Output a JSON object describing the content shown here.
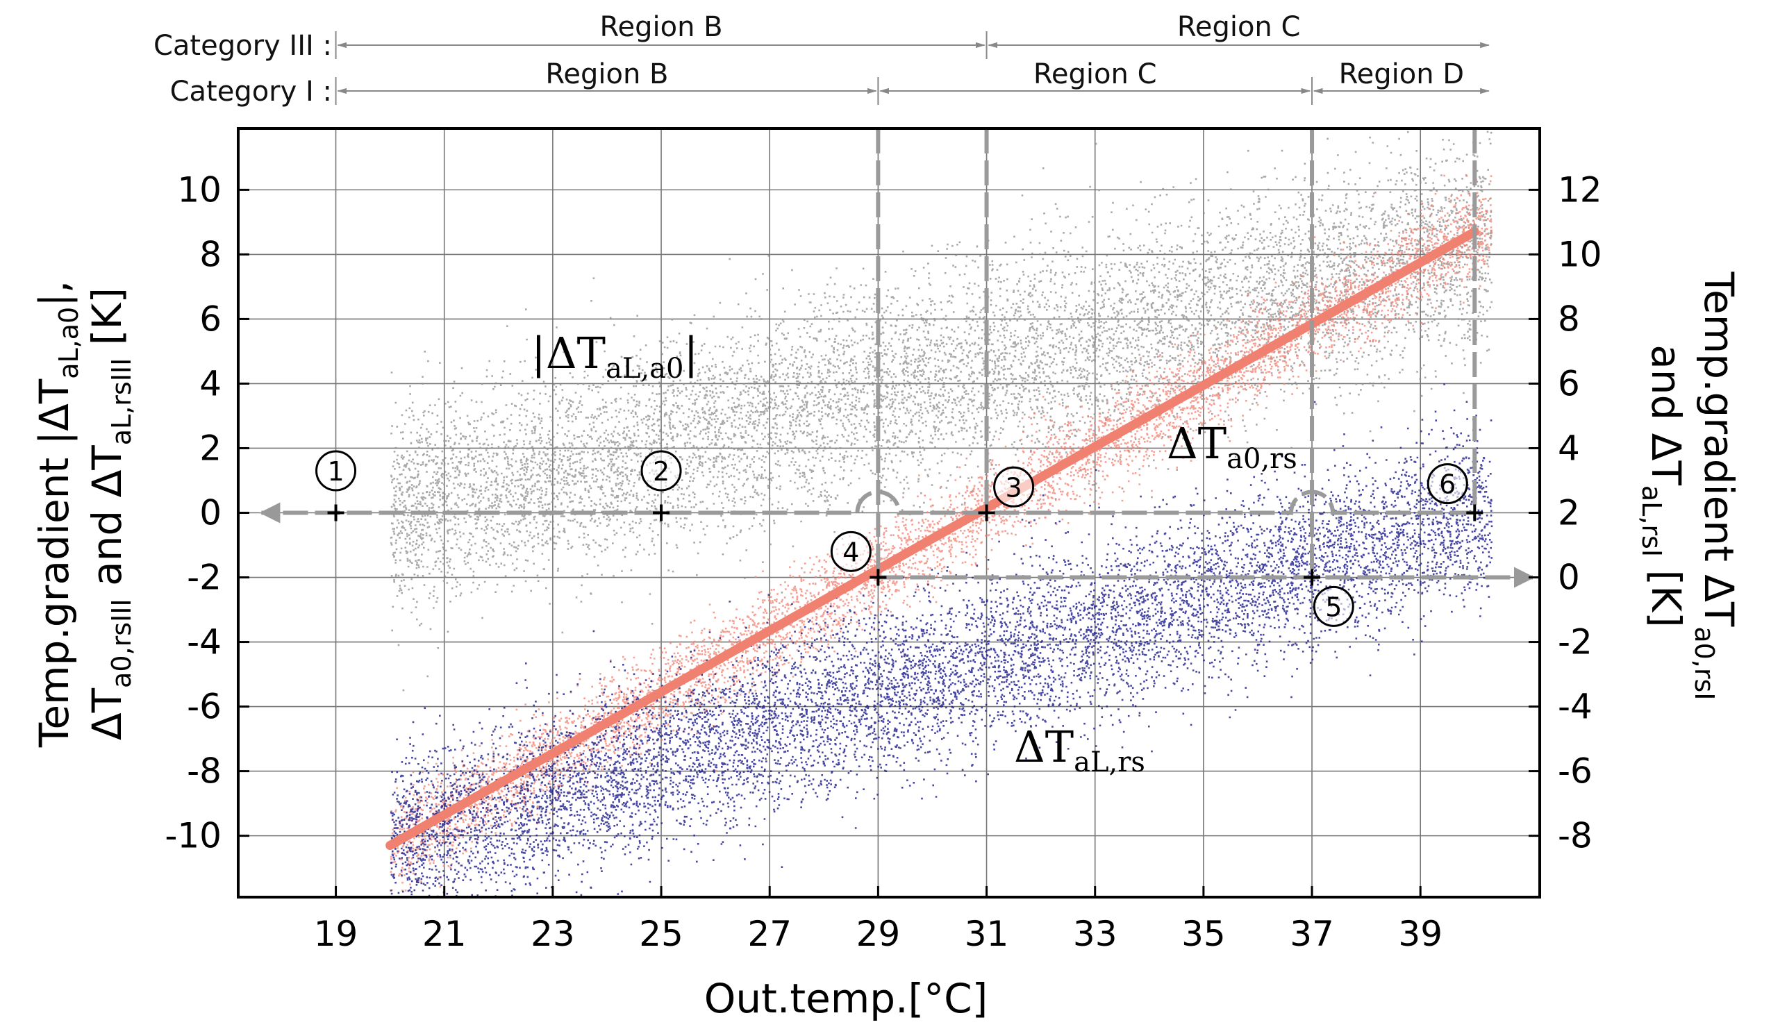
{
  "chart_data": {
    "type": "scatter",
    "title": "",
    "xlabel": "Out.temp.[°C]",
    "ylabel_left_line1": "Temp.gradient |ΔT",
    "ylabel_left_line1_sub": "aL,a0",
    "ylabel_left_line1_tail": "|,",
    "ylabel_left_line2": "ΔT",
    "ylabel_left_line2_sub": "a0,rsIII",
    "ylabel_left_line2_mid": " and ΔT",
    "ylabel_left_line2_sub2": "aL,rsIII",
    "ylabel_left_line2_tail": " [K]",
    "ylabel_right_line1": "Temp.gradient ΔT",
    "ylabel_right_line1_sub": "a0,rsI",
    "ylabel_right_line2": "and ΔT",
    "ylabel_right_line2_sub": "aL,rsI",
    "ylabel_right_line2_tail": " [K]",
    "xlim": [
      17.2,
      41.2
    ],
    "ylim_left": [
      -11.9,
      11.9
    ],
    "ylim_right": [
      -9.9,
      13.9
    ],
    "x_ticks": [
      "19",
      "21",
      "23",
      "25",
      "27",
      "29",
      "31",
      "33",
      "35",
      "37",
      "39"
    ],
    "y_ticks_left": [
      "10",
      "8",
      "6",
      "4",
      "2",
      "0",
      "-2",
      "-4",
      "-6",
      "-8",
      "-10"
    ],
    "y_ticks_right": [
      "12",
      "10",
      "8",
      "6",
      "4",
      "2",
      "0",
      "-2",
      "-4",
      "-6",
      "-8"
    ],
    "grid": true,
    "series": [
      {
        "name": "|ΔT_aL,a0|",
        "label_main": "|ΔT",
        "label_sub": "aL,a0",
        "label_tail": "|",
        "color": "#8c8c8c",
        "trend": {
          "x": [
            19.5,
            40
          ],
          "y": [
            -0.2,
            8.3
          ]
        },
        "spread": 1.6
      },
      {
        "name": "ΔT_a0,rs",
        "label_main": "ΔT",
        "label_sub": "a0,rs",
        "color": "#f08070",
        "fit_line": {
          "x": [
            20,
            40
          ],
          "y": [
            -10.3,
            8.7
          ]
        },
        "spread": 0.7
      },
      {
        "name": "ΔT_aL,rs",
        "label_main": "ΔT",
        "label_sub": "aL,rs",
        "color": "#1a1a8c",
        "trend": {
          "x": [
            20,
            40
          ],
          "y": [
            -10.2,
            0
          ]
        },
        "spread": 1.3
      }
    ],
    "regions": {
      "category_iii": {
        "label": "Category III :",
        "segments": [
          {
            "label": "Region B",
            "from": 19,
            "to": 31
          },
          {
            "label": "Region C",
            "from": 31,
            "to": 40.3
          }
        ]
      },
      "category_i": {
        "label": "Category I :",
        "segments": [
          {
            "label": "Region B",
            "from": 19,
            "to": 29
          },
          {
            "label": "Region C",
            "from": 29,
            "to": 37
          },
          {
            "label": "Region D",
            "from": 37,
            "to": 40.3
          }
        ]
      }
    },
    "reference_lines": {
      "horizontal_left_zero": {
        "y": 0,
        "from": 40,
        "to": 17.5,
        "arrow": "left"
      },
      "horizontal_right_zero": {
        "y_right": 0,
        "from": 29,
        "to": 40.8,
        "arrow": "right"
      },
      "vertical": [
        29,
        31,
        37,
        40
      ]
    },
    "markers": [
      {
        "id": "1",
        "x": 19,
        "y": 0,
        "label_dx": 0,
        "label_dy": 1.3
      },
      {
        "id": "2",
        "x": 25,
        "y": 0,
        "label_dx": 0,
        "label_dy": 1.3
      },
      {
        "id": "3",
        "x": 31,
        "y": 0,
        "label_dx": 0.5,
        "label_dy": 0.8
      },
      {
        "id": "4",
        "x": 29,
        "y": -2,
        "label_dx": -0.5,
        "label_dy": 0.8
      },
      {
        "id": "5",
        "x": 37,
        "y": -2,
        "label_dx": 0.4,
        "label_dy": -0.9
      },
      {
        "id": "6",
        "x": 40,
        "y": 0,
        "label_dx": -0.5,
        "label_dy": 0.9
      }
    ]
  }
}
